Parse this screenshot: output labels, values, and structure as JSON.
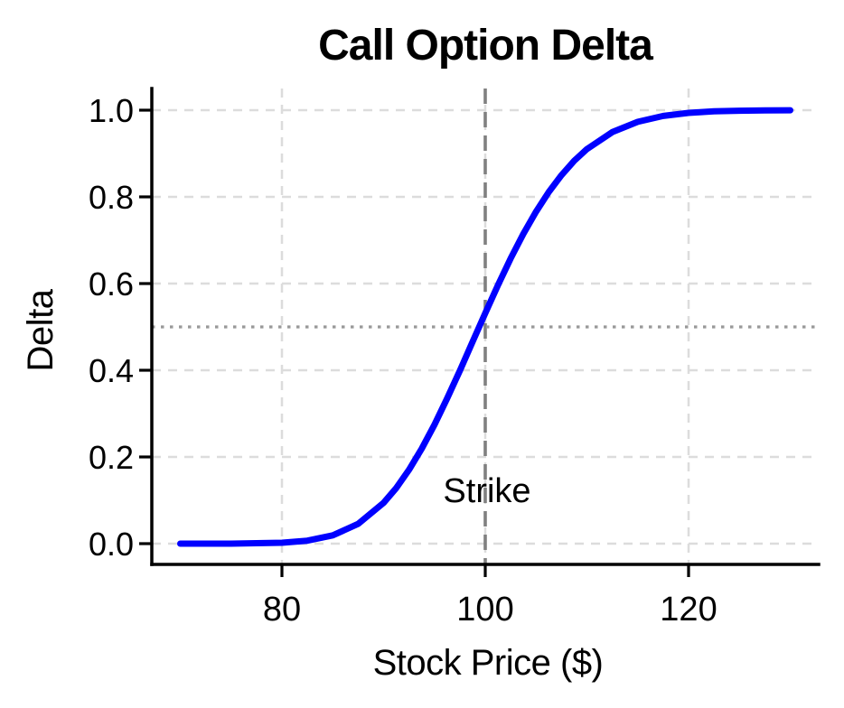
{
  "figure": {
    "background": "#ffffff"
  },
  "chart_data": {
    "type": "line",
    "title": "Call Option Delta",
    "xlabel": "Stock Price ($)",
    "ylabel": "Delta",
    "xlim": [
      70,
      130
    ],
    "ylim": [
      0,
      1
    ],
    "x_ticks": [
      80,
      100,
      120
    ],
    "y_ticks": [
      0,
      0.2,
      0.4,
      0.6,
      0.8,
      1
    ],
    "grid": "dashed",
    "legend_position": "none",
    "series": [
      {
        "name": "call-option-delta",
        "color": "#0000ff",
        "x": [
          70,
          75,
          80,
          82.5,
          85,
          87.5,
          90,
          91.25,
          92.5,
          93.75,
          95,
          96.25,
          97.5,
          98.75,
          100,
          101.25,
          102.5,
          103.75,
          105,
          106.25,
          107.5,
          108.75,
          110,
          112.5,
          115,
          117.5,
          120,
          122.5,
          125,
          127.5,
          130
        ],
        "y": [
          0.0,
          0.0001,
          0.002,
          0.0068,
          0.0191,
          0.0456,
          0.0941,
          0.1286,
          0.1703,
          0.2191,
          0.2743,
          0.3349,
          0.399,
          0.4654,
          0.5317,
          0.5965,
          0.6579,
          0.7147,
          0.766,
          0.8113,
          0.8502,
          0.8831,
          0.9102,
          0.9494,
          0.9732,
          0.9867,
          0.9937,
          0.9972,
          0.9988,
          0.9995,
          0.9998
        ]
      }
    ],
    "reference_lines": [
      {
        "orientation": "vertical",
        "value": 100,
        "style": "dashed",
        "color": "#808080",
        "meaning": "strike price"
      },
      {
        "orientation": "horizontal",
        "value": 0.5,
        "style": "dotted",
        "color": "#999999",
        "meaning": "delta one-half"
      }
    ],
    "annotations": [
      {
        "text": "Strike",
        "x": 100,
        "y": 0.12
      }
    ]
  },
  "colors": {
    "curve": "#0000ff",
    "grid": "#dcdcdc",
    "strike_line": "#808080",
    "half_delta_line": "#999999",
    "axis": "#000000",
    "text": "#000000",
    "background": "#ffffff"
  }
}
